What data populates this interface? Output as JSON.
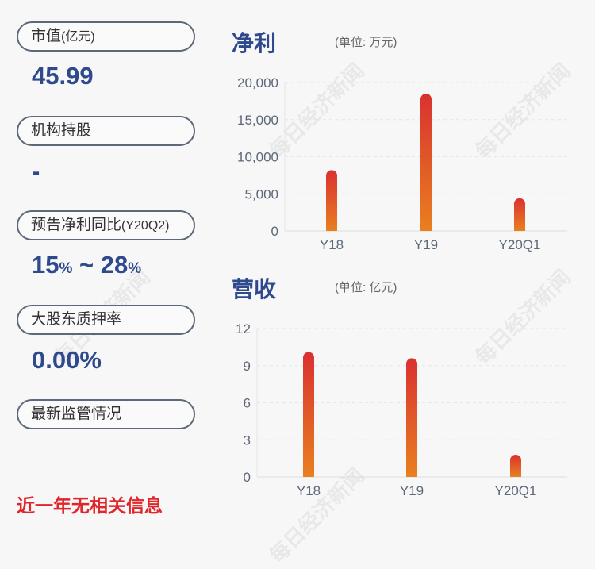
{
  "left": {
    "market_cap": {
      "label": "市值",
      "unit": "(亿元)",
      "value": "45.99"
    },
    "institutional": {
      "label": "机构持股",
      "value": "-"
    },
    "forecast": {
      "label": "预告净利同比",
      "period": "(Y20Q2)",
      "low": "15",
      "high": "28",
      "pct": "%",
      "tilde": " ~ "
    },
    "pledge": {
      "label": "大股东质押率",
      "value": "0.00%"
    },
    "regulation": {
      "label": "最新监管情况"
    },
    "no_info": "近一年无相关信息"
  },
  "watermark": "每日经济新闻",
  "chart_data": [
    {
      "type": "bar",
      "title": "净利",
      "unit": "(单位: 万元)",
      "categories": [
        "Y18",
        "Y19",
        "Y20Q1"
      ],
      "values": [
        8200,
        18500,
        4400
      ],
      "ylim": [
        0,
        20000
      ],
      "yticks": [
        0,
        5000,
        10000,
        15000,
        20000
      ],
      "ytick_labels": [
        "0",
        "5,000",
        "10,000",
        "15,000",
        "20,000"
      ],
      "grid": true,
      "colors": [
        "#e0862b",
        "#dc3232"
      ]
    },
    {
      "type": "bar",
      "title": "营收",
      "unit": "(单位: 亿元)",
      "categories": [
        "Y18",
        "Y19",
        "Y20Q1"
      ],
      "values": [
        10.1,
        9.6,
        1.8
      ],
      "ylim": [
        0,
        12
      ],
      "yticks": [
        0,
        3,
        6,
        9,
        12
      ],
      "ytick_labels": [
        "0",
        "3",
        "6",
        "9",
        "12"
      ],
      "grid": true,
      "colors": [
        "#e0862b",
        "#dc3232"
      ]
    }
  ]
}
